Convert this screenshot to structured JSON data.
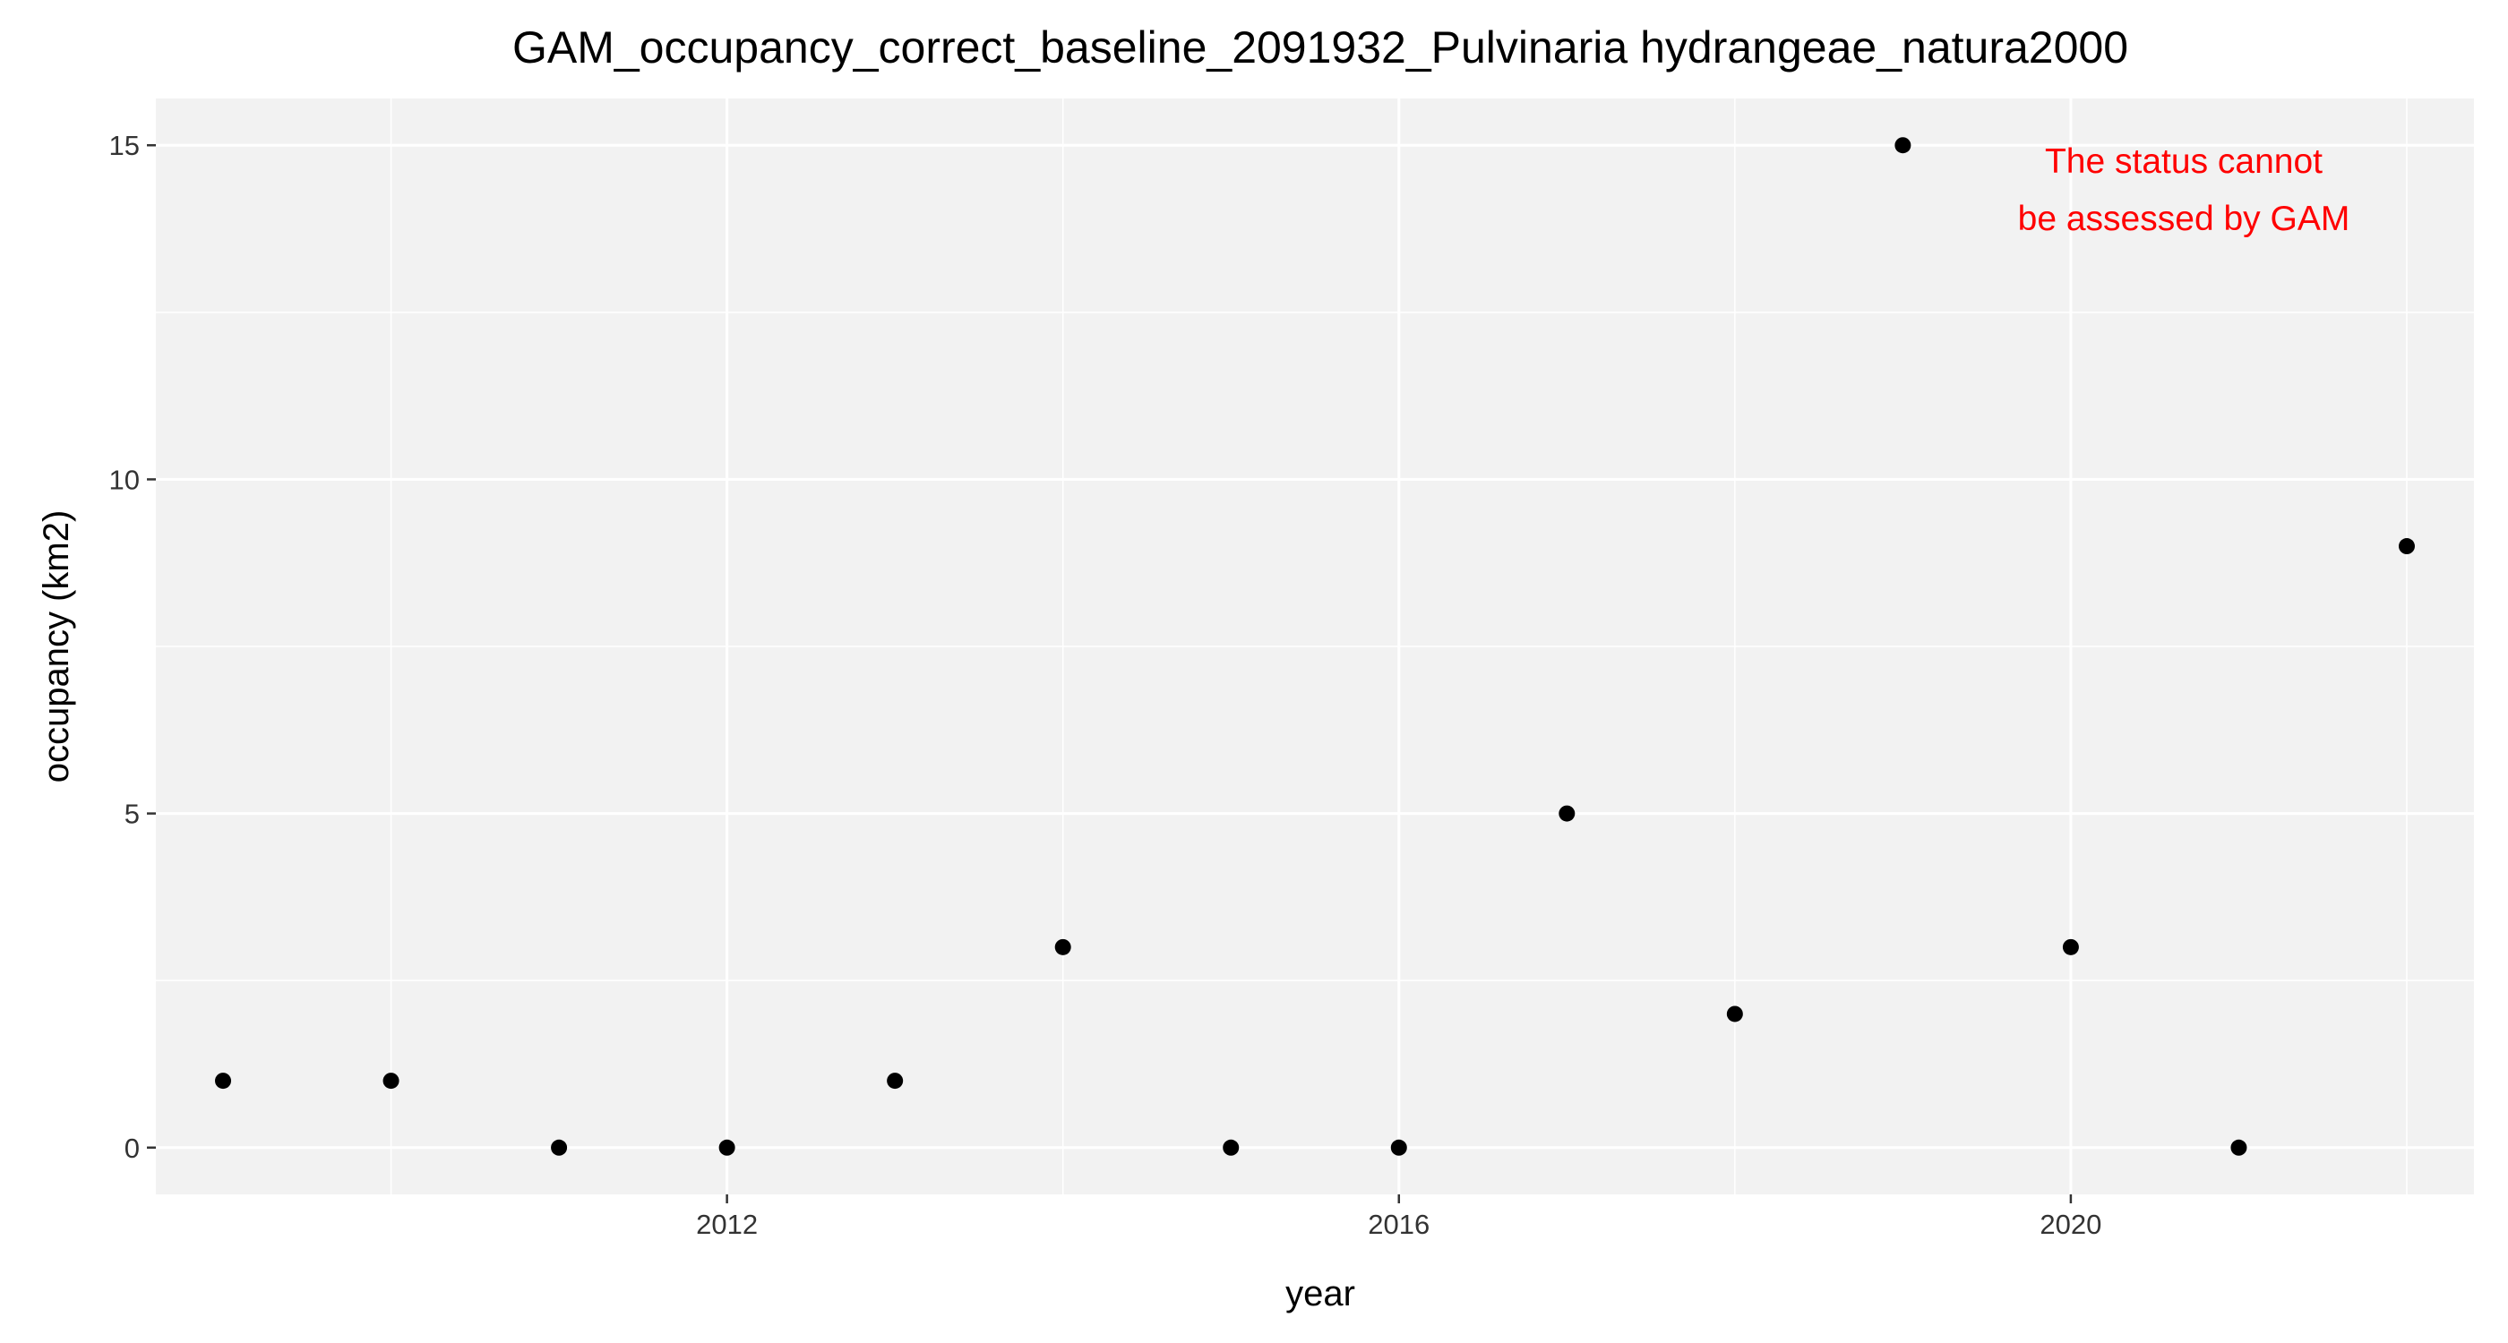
{
  "chart_data": {
    "type": "scatter",
    "title": "GAM_occupancy_correct_baseline_2091932_Pulvinaria hydrangeae_natura2000",
    "xlabel": "year",
    "ylabel": "occupancy (km2)",
    "xlim": [
      2008.6,
      2022.4
    ],
    "ylim": [
      -0.7,
      15.7
    ],
    "x_ticks": [
      2012,
      2016,
      2020
    ],
    "x_minor_ticks": [
      2010,
      2014,
      2018,
      2022
    ],
    "y_ticks": [
      0,
      5,
      10,
      15
    ],
    "y_minor_ticks": [
      2.5,
      7.5,
      12.5
    ],
    "grid": true,
    "point_color": "#000000",
    "panel_color": "#f2f2f2",
    "points": [
      {
        "x": 2009,
        "y": 1
      },
      {
        "x": 2010,
        "y": 1
      },
      {
        "x": 2011,
        "y": 0
      },
      {
        "x": 2012,
        "y": 0
      },
      {
        "x": 2013,
        "y": 1
      },
      {
        "x": 2014,
        "y": 3
      },
      {
        "x": 2015,
        "y": 0
      },
      {
        "x": 2016,
        "y": 0
      },
      {
        "x": 2017,
        "y": 5
      },
      {
        "x": 2018,
        "y": 2
      },
      {
        "x": 2019,
        "y": 15
      },
      {
        "x": 2020,
        "y": 3
      },
      {
        "x": 2021,
        "y": 0
      },
      {
        "x": 2022,
        "y": 9
      }
    ],
    "annotation": {
      "lines": [
        "The status cannot",
        "be assessed by GAM"
      ],
      "color": "#ff0000"
    }
  }
}
